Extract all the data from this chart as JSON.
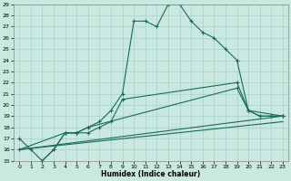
{
  "xlabel": "Humidex (Indice chaleur)",
  "background_color": "#c8e8e0",
  "grid_color": "#a8d0cc",
  "line_color": "#1a6b5a",
  "xlim": [
    -0.5,
    23.5
  ],
  "ylim": [
    15,
    29
  ],
  "xticks": [
    0,
    1,
    2,
    3,
    4,
    5,
    6,
    7,
    8,
    9,
    10,
    11,
    12,
    13,
    14,
    15,
    16,
    17,
    18,
    19,
    20,
    21,
    22,
    23
  ],
  "yticks": [
    15,
    16,
    17,
    18,
    19,
    20,
    21,
    22,
    23,
    24,
    25,
    26,
    27,
    28,
    29
  ],
  "line1": {
    "x": [
      0,
      1,
      2,
      3,
      4,
      5,
      6,
      7,
      8,
      9,
      10,
      11,
      12,
      13,
      14,
      15,
      16,
      17,
      18,
      19,
      20,
      21,
      22,
      23
    ],
    "y": [
      17,
      16,
      15,
      16,
      17.5,
      17.5,
      18,
      18.5,
      19.5,
      21,
      27.5,
      27.5,
      27,
      29,
      29,
      27.5,
      26.5,
      26,
      25,
      24,
      19.5,
      19,
      19,
      19
    ]
  },
  "line2": {
    "x": [
      2,
      3,
      4,
      5,
      6,
      7,
      8,
      9,
      19,
      20,
      21,
      22,
      23
    ],
    "y": [
      15,
      16,
      17.5,
      17.5,
      17.5,
      18,
      18.5,
      20.5,
      22,
      19.5,
      19,
      19,
      19
    ]
  },
  "line3": {
    "x": [
      0,
      4,
      5,
      6,
      19,
      20,
      23
    ],
    "y": [
      16,
      17.5,
      17.5,
      18,
      21.5,
      19.5,
      19
    ]
  },
  "line4": {
    "x": [
      0,
      23
    ],
    "y": [
      16,
      18.5
    ]
  },
  "line5": {
    "x": [
      0,
      23
    ],
    "y": [
      16,
      19
    ]
  }
}
